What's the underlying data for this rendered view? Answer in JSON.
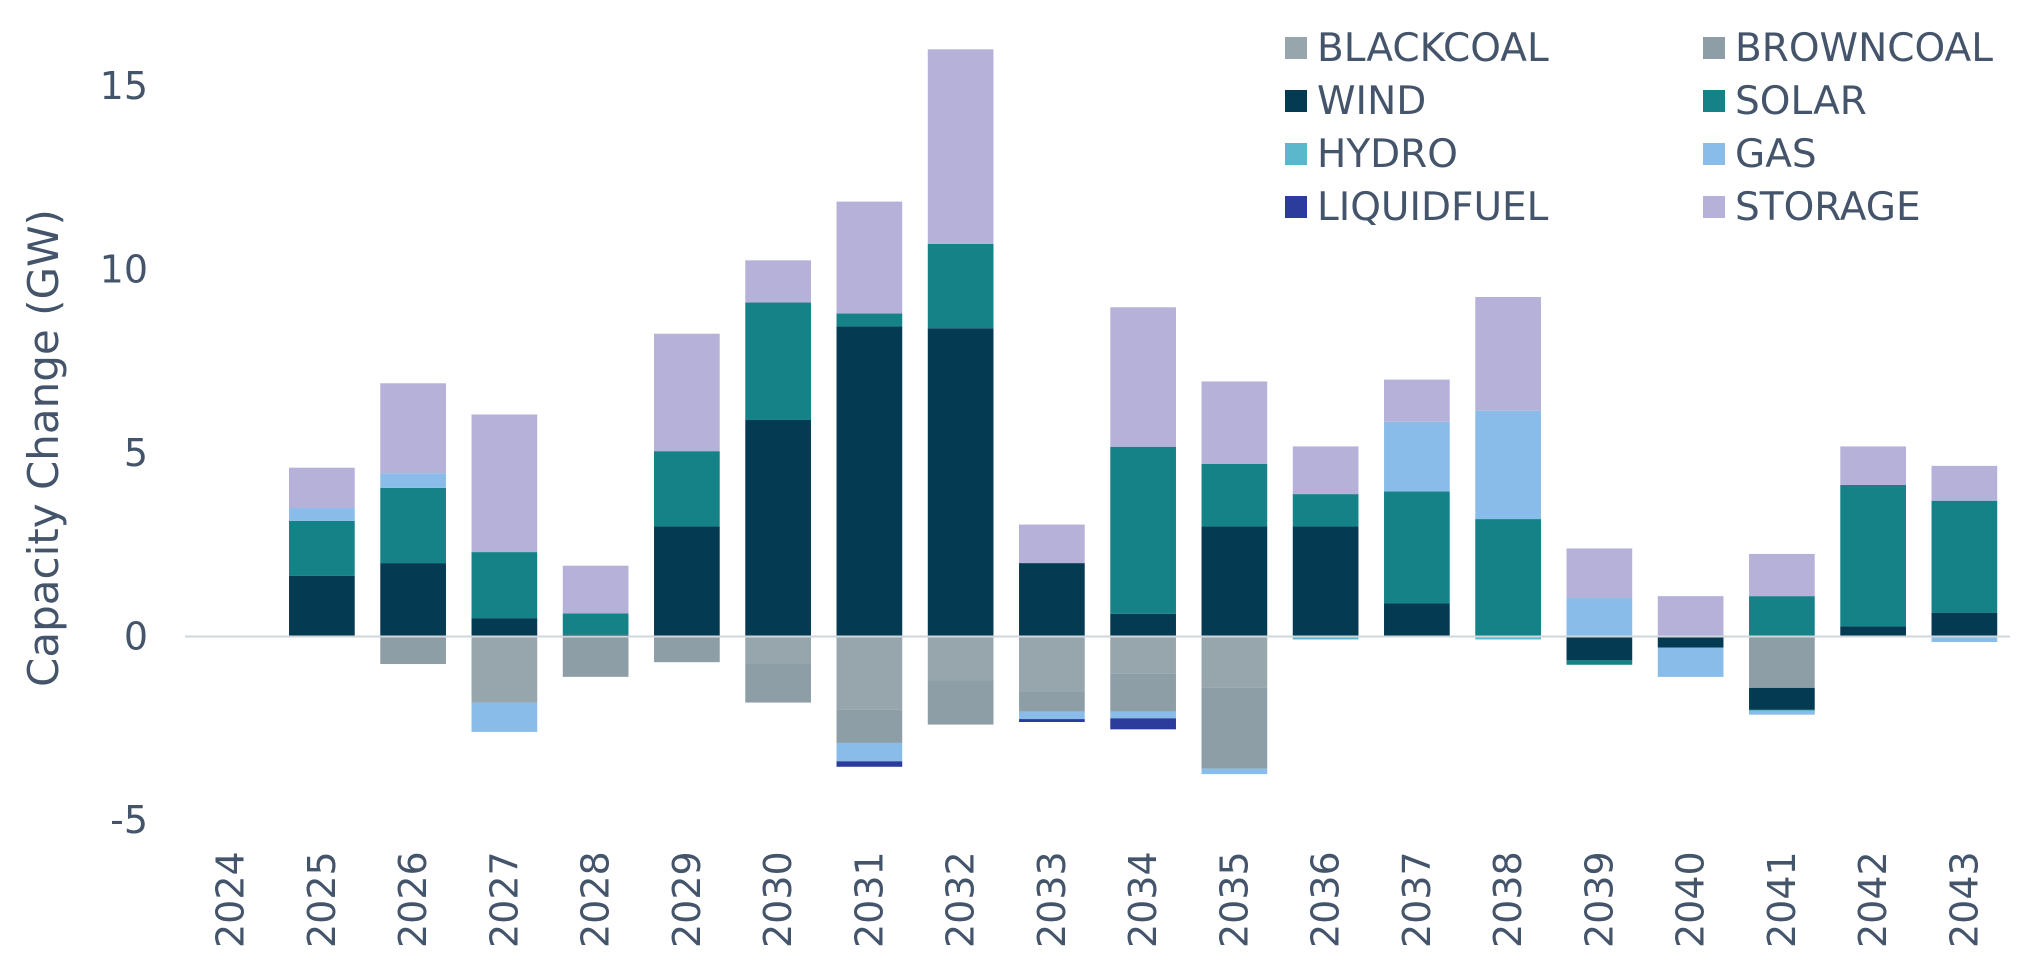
{
  "chart_data": {
    "type": "bar",
    "stacked": true,
    "ylabel": "Capacity Change (GW)",
    "xlabel": "",
    "ylim": [
      -5,
      15
    ],
    "yticks": [
      -5,
      0,
      5,
      10,
      15
    ],
    "ytick_labels": [
      "-5",
      "0",
      "5",
      "10",
      "15"
    ],
    "grid": false,
    "legend_position": "top-right",
    "categories": [
      "2024",
      "2025",
      "2026",
      "2027",
      "2028",
      "2029",
      "2030",
      "2031",
      "2032",
      "2033",
      "2034",
      "2035",
      "2036",
      "2037",
      "2038",
      "2039",
      "2040",
      "2041",
      "2042",
      "2043"
    ],
    "series": [
      {
        "name": "BLACKCOAL",
        "color": "#97A5AC",
        "values": [
          0,
          0,
          0,
          -1.8,
          0,
          0,
          -0.75,
          -2.0,
          -1.2,
          -1.5,
          -1.0,
          -1.4,
          0,
          0,
          0,
          0,
          0,
          0,
          0,
          0
        ]
      },
      {
        "name": "BROWNCOAL",
        "color": "#8E9EA6",
        "values": [
          0,
          0,
          -0.75,
          0,
          -1.1,
          -0.7,
          -1.05,
          -0.9,
          -1.2,
          -0.55,
          -1.05,
          -2.2,
          0,
          0,
          0,
          0,
          0,
          -1.4,
          0,
          0
        ]
      },
      {
        "name": "WIND",
        "color": "#053A53",
        "values": [
          0,
          1.65,
          2.0,
          0.5,
          0.05,
          3.0,
          5.9,
          8.45,
          8.4,
          2.0,
          0.62,
          3.0,
          3.0,
          0.9,
          0,
          -0.65,
          -0.3,
          -0.6,
          0.28,
          0.65
        ]
      },
      {
        "name": "SOLAR",
        "color": "#158288",
        "values": [
          0,
          1.5,
          2.05,
          1.8,
          0.58,
          2.05,
          3.2,
          0.35,
          2.3,
          0,
          4.55,
          1.7,
          0.88,
          3.05,
          3.2,
          -0.12,
          0,
          1.1,
          3.85,
          3.05
        ]
      },
      {
        "name": "HYDRO",
        "color": "#5BB8CC",
        "values": [
          0,
          0,
          0,
          0,
          0,
          0,
          0,
          0,
          0,
          0,
          0,
          0,
          -0.08,
          0,
          -0.08,
          0,
          0,
          -0.05,
          0,
          0
        ]
      },
      {
        "name": "GAS",
        "color": "#89BCE8",
        "values": [
          0,
          0.35,
          0.4,
          -0.8,
          0,
          0,
          0,
          -0.5,
          0,
          -0.2,
          -0.18,
          -0.15,
          0,
          1.9,
          2.95,
          1.05,
          -0.8,
          -0.08,
          0,
          -0.15
        ]
      },
      {
        "name": "LIQUIDFUEL",
        "color": "#2C3C9C",
        "values": [
          0,
          0,
          0,
          0,
          0,
          0,
          0,
          -0.15,
          0,
          -0.08,
          -0.3,
          0,
          0,
          0,
          0,
          0,
          0,
          0,
          0,
          0
        ]
      },
      {
        "name": "STORAGE",
        "color": "#B5B1D9",
        "values": [
          0,
          1.1,
          2.45,
          3.75,
          1.3,
          3.2,
          1.15,
          3.05,
          5.3,
          1.05,
          3.8,
          2.25,
          1.3,
          1.15,
          3.1,
          1.35,
          1.1,
          1.15,
          1.05,
          0.95
        ]
      }
    ]
  }
}
